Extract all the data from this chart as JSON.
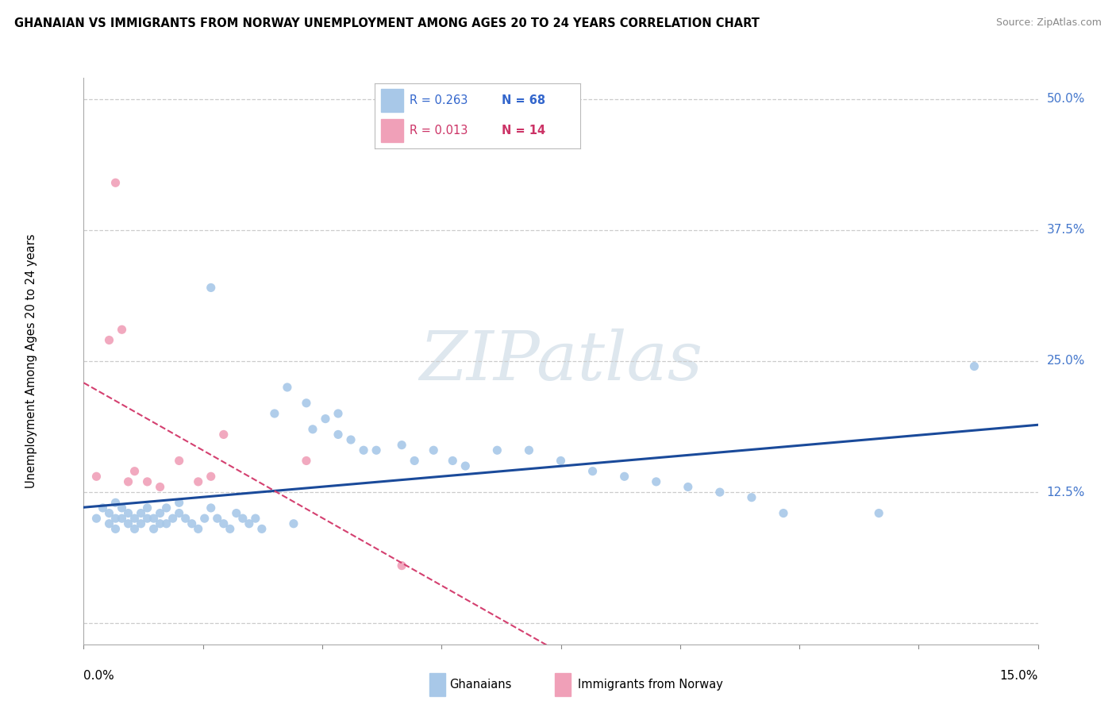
{
  "title": "GHANAIAN VS IMMIGRANTS FROM NORWAY UNEMPLOYMENT AMONG AGES 20 TO 24 YEARS CORRELATION CHART",
  "source": "Source: ZipAtlas.com",
  "xlim": [
    0.0,
    0.15
  ],
  "ylim": [
    -0.02,
    0.52
  ],
  "yticks": [
    0.0,
    0.125,
    0.25,
    0.375,
    0.5
  ],
  "ytick_labels": [
    "",
    "12.5%",
    "25.0%",
    "37.5%",
    "50.0%"
  ],
  "color_blue_scatter": "#a8c8e8",
  "color_pink_scatter": "#f0a0b8",
  "color_blue_line": "#1a4a9a",
  "color_pink_line": "#d44070",
  "color_blue_text": "#3366cc",
  "color_pink_text": "#cc3366",
  "color_ytick_text": "#4477cc",
  "legend1_r": "R = 0.263",
  "legend1_n": "N = 68",
  "legend2_r": "R = 0.013",
  "legend2_n": "N = 14",
  "ylabel": "Unemployment Among Ages 20 to 24 years",
  "ghanaian_x": [
    0.002,
    0.003,
    0.004,
    0.004,
    0.005,
    0.005,
    0.005,
    0.006,
    0.006,
    0.007,
    0.007,
    0.008,
    0.008,
    0.009,
    0.009,
    0.01,
    0.01,
    0.011,
    0.011,
    0.012,
    0.012,
    0.013,
    0.013,
    0.014,
    0.015,
    0.015,
    0.016,
    0.017,
    0.018,
    0.019,
    0.02,
    0.02,
    0.021,
    0.022,
    0.023,
    0.024,
    0.025,
    0.026,
    0.027,
    0.028,
    0.03,
    0.032,
    0.033,
    0.035,
    0.036,
    0.038,
    0.04,
    0.04,
    0.042,
    0.044,
    0.046,
    0.05,
    0.052,
    0.055,
    0.058,
    0.06,
    0.065,
    0.07,
    0.075,
    0.08,
    0.085,
    0.09,
    0.095,
    0.1,
    0.105,
    0.11,
    0.125,
    0.14
  ],
  "ghanaian_y": [
    0.1,
    0.11,
    0.095,
    0.105,
    0.09,
    0.1,
    0.115,
    0.1,
    0.11,
    0.095,
    0.105,
    0.09,
    0.1,
    0.095,
    0.105,
    0.1,
    0.11,
    0.09,
    0.1,
    0.095,
    0.105,
    0.11,
    0.095,
    0.1,
    0.105,
    0.115,
    0.1,
    0.095,
    0.09,
    0.1,
    0.32,
    0.11,
    0.1,
    0.095,
    0.09,
    0.105,
    0.1,
    0.095,
    0.1,
    0.09,
    0.2,
    0.225,
    0.095,
    0.21,
    0.185,
    0.195,
    0.2,
    0.18,
    0.175,
    0.165,
    0.165,
    0.17,
    0.155,
    0.165,
    0.155,
    0.15,
    0.165,
    0.165,
    0.155,
    0.145,
    0.14,
    0.135,
    0.13,
    0.125,
    0.12,
    0.105,
    0.105,
    0.245
  ],
  "norway_x": [
    0.002,
    0.004,
    0.005,
    0.006,
    0.007,
    0.008,
    0.01,
    0.012,
    0.015,
    0.018,
    0.02,
    0.022,
    0.035,
    0.05
  ],
  "norway_y": [
    0.14,
    0.27,
    0.42,
    0.28,
    0.135,
    0.145,
    0.135,
    0.13,
    0.155,
    0.135,
    0.14,
    0.18,
    0.155,
    0.055
  ]
}
